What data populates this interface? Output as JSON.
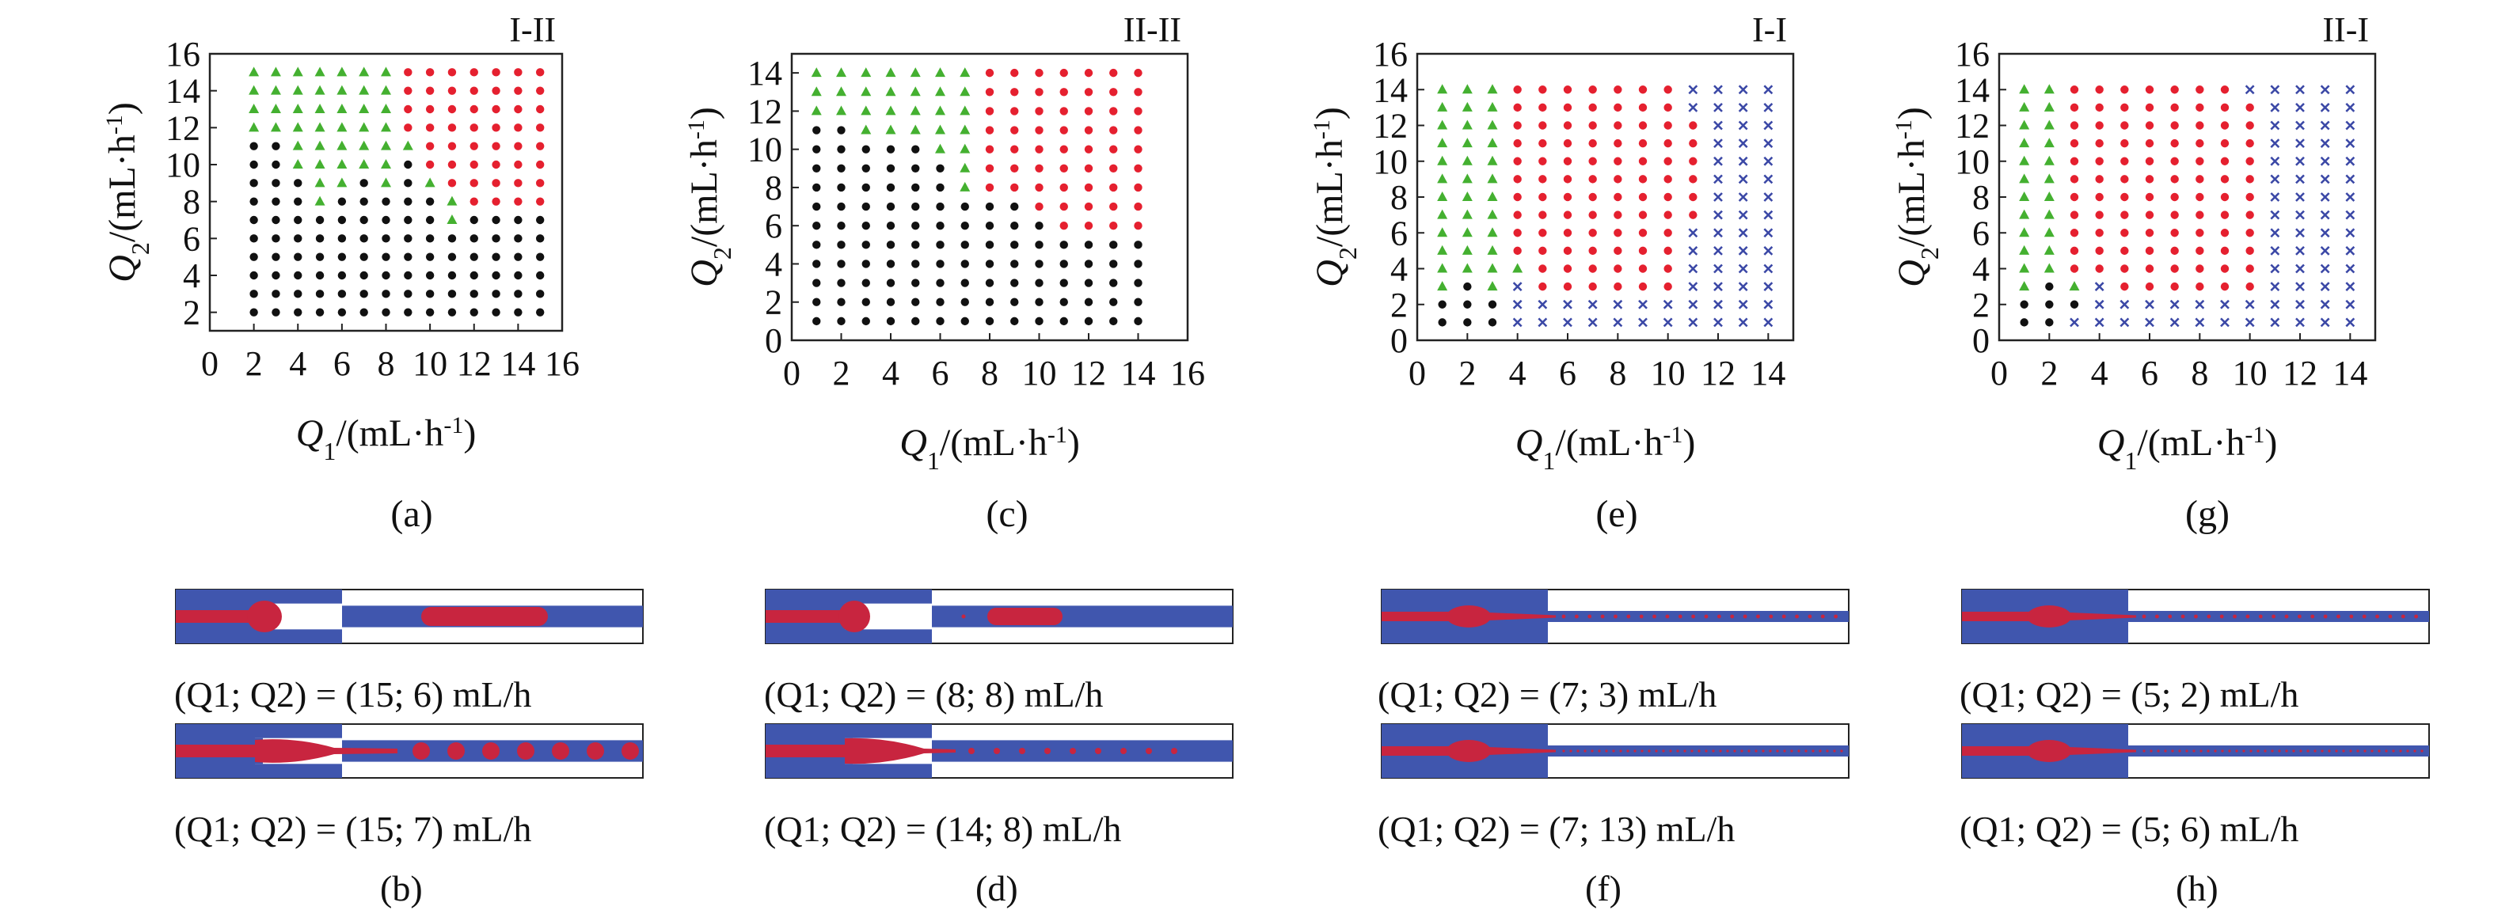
{
  "colors": {
    "green": "#44b030",
    "red": "#e5202f",
    "black": "#111111",
    "blue": "#3b48a6",
    "channel_fill": "#4056ae",
    "drop_fill": "#c8253f",
    "frame": "#222222"
  },
  "marker_legend": {
    "green": "triangle",
    "red": "circle",
    "black": "circle",
    "blue": "x"
  },
  "chart_data": [
    {
      "panel": "(a)",
      "title": "I-II",
      "type": "scatter",
      "xlabel": "Q1/(mL·h-1)",
      "ylabel": "Q2/(mL·h-1)",
      "xlim": [
        0,
        16
      ],
      "ylim": [
        1,
        16
      ],
      "xticks": [
        0,
        2,
        4,
        6,
        8,
        10,
        12,
        14,
        16
      ],
      "yticks": [
        2,
        4,
        6,
        8,
        10,
        12,
        14,
        16
      ],
      "grid": false,
      "x_values": [
        2,
        3,
        4,
        5,
        6,
        7,
        8,
        9,
        10,
        11,
        12,
        13,
        14,
        15
      ],
      "y_values": [
        2,
        3,
        4,
        5,
        6,
        7,
        8,
        9,
        10,
        11,
        12,
        13,
        14,
        15
      ],
      "classes": [
        "KKKKKKKKKKKKKK",
        "KKKKKKKKKKKKKK",
        "KKKKKKKKKKKKKK",
        "KKKKKKKKKKKKKK",
        "KKKKKKKKKKKKKK",
        "KKKKKKKKKGKKKK",
        "KKKGKKKKKGRRRR",
        "KKKGGKGKGRRRRR",
        "KKGGGGGKRRRRRR",
        "KKGGGGGGRRRRRR",
        "GGGGGGGRRRRRRR",
        "GGGGGGGRRRRRRR",
        "GGGGGGGRRRRRRR",
        "GGGGGGGRRRRRRR"
      ]
    },
    {
      "panel": "(c)",
      "title": "II-II",
      "type": "scatter",
      "xlabel": "Q1/(mL·h-1)",
      "ylabel": "Q2/(mL·h-1)",
      "xlim": [
        0,
        16
      ],
      "ylim": [
        0,
        15
      ],
      "xticks": [
        0,
        2,
        4,
        6,
        8,
        10,
        12,
        14,
        16
      ],
      "yticks": [
        0,
        2,
        4,
        6,
        8,
        10,
        12,
        14
      ],
      "grid": false,
      "x_values": [
        1,
        2,
        3,
        4,
        5,
        6,
        7,
        8,
        9,
        10,
        11,
        12,
        13,
        14
      ],
      "y_values": [
        1,
        2,
        3,
        4,
        5,
        6,
        7,
        8,
        9,
        10,
        11,
        12,
        13,
        14
      ],
      "classes": [
        "KKKKKKKKKKKKKK",
        "KKKKKKKKKKKKKK",
        "KKKKKKKKKKKKKK",
        "KKKKKKKKKKKKKK",
        "KKKKKKKKKKKKKK",
        "KKKKKKKKKKRRRR",
        "KKKKKKKKKRRRRR",
        "KKKKKKGRRRRRRR",
        "KKKKKKGRRRRRRR",
        "KKKKKGGRRRRRRR",
        "KKGGGGGRRRRRRR",
        "GGGGGGGRRRRRRR",
        "GGGGGGGRRRRRRR",
        "GGGGGGGRRRRRRR"
      ]
    },
    {
      "panel": "(e)",
      "title": "I-I",
      "type": "scatter",
      "xlabel": "Q1/(mL·h-1)",
      "ylabel": "Q2/(mL·h-1)",
      "xlim": [
        0,
        15
      ],
      "ylim": [
        0,
        16
      ],
      "xticks": [
        0,
        2,
        4,
        6,
        8,
        10,
        12,
        14
      ],
      "yticks": [
        0,
        2,
        4,
        6,
        8,
        10,
        12,
        14,
        16
      ],
      "grid": false,
      "x_values": [
        1,
        2,
        3,
        4,
        5,
        6,
        7,
        8,
        9,
        10,
        11,
        12,
        13,
        14
      ],
      "y_values": [
        1,
        2,
        3,
        4,
        5,
        6,
        7,
        8,
        9,
        10,
        11,
        12,
        13,
        14
      ],
      "classes": [
        "KKKXXXXXXXXXXX",
        "KKKXXXXXXXXXXX",
        "GKGXRRRRRRXXXX",
        "GGGGRRRRRRXXXX",
        "GGGRRRRRRRXXXX",
        "GGGRRRRRRRXXXX",
        "GGGRRRRRRRRXXX",
        "GGGRRRRRRRRXXX",
        "GGGRRRRRRRRXXX",
        "GGGRRRRRRRRXXX",
        "GGGRRRRRRRRXXX",
        "GGGRRRRRRRRXXX",
        "GGGRRRRRRRXXXX",
        "GGGRRRRRRRXXXX"
      ]
    },
    {
      "panel": "(g)",
      "title": "II-I",
      "type": "scatter",
      "xlabel": "Q1/(mL·h-1)",
      "ylabel": "Q2/(mL·h-1)",
      "xlim": [
        0,
        15
      ],
      "ylim": [
        0,
        16
      ],
      "xticks": [
        0,
        2,
        4,
        6,
        8,
        10,
        12,
        14
      ],
      "yticks": [
        0,
        2,
        4,
        6,
        8,
        10,
        12,
        14,
        16
      ],
      "grid": false,
      "x_values": [
        1,
        2,
        3,
        4,
        5,
        6,
        7,
        8,
        9,
        10,
        11,
        12,
        13,
        14
      ],
      "y_values": [
        1,
        2,
        3,
        4,
        5,
        6,
        7,
        8,
        9,
        10,
        11,
        12,
        13,
        14
      ],
      "classes": [
        "KKXXXXXXXXXXXX",
        "KKKXXXXXXXXXXX",
        "GKGXRRRRRRXXXX",
        "GGRRRRRRRRXXXX",
        "GGRRRRRRRRXXXX",
        "GGRRRRRRRRXXXX",
        "GGRRRRRRRRXXXX",
        "GGRRRRRRRRXXXX",
        "GGRRRRRRRRXXXX",
        "GGRRRRRRRRXXXX",
        "GGRRRRRRRRXXXX",
        "GGRRRRRRRRXXXX",
        "GGRRRRRRRRXXXX",
        "GGRRRRRRRXXXXX"
      ]
    }
  ],
  "panel_labels": [
    "(a)",
    "(c)",
    "(e)",
    "(g)"
  ],
  "simulations": [
    {
      "label": "(b)",
      "caption": "(Q1; Q2) = (15; 7) mL/h"
    },
    {
      "label": "(d)",
      "caption": "(Q1; Q2) = (14; 8) mL/h"
    },
    {
      "label": "(f)",
      "caption": "(Q1; Q2) = (7; 13) mL/h"
    },
    {
      "label": "(h)",
      "caption": "(Q1; Q2) = (5; 6) mL/h"
    }
  ],
  "top_captions": [
    "(Q1; Q2) = (15; 6) mL/h",
    "(Q1; Q2) = (8; 8) mL/h",
    "(Q1; Q2) = (7; 3) mL/h",
    "(Q1; Q2) = (5; 2) mL/h"
  ]
}
